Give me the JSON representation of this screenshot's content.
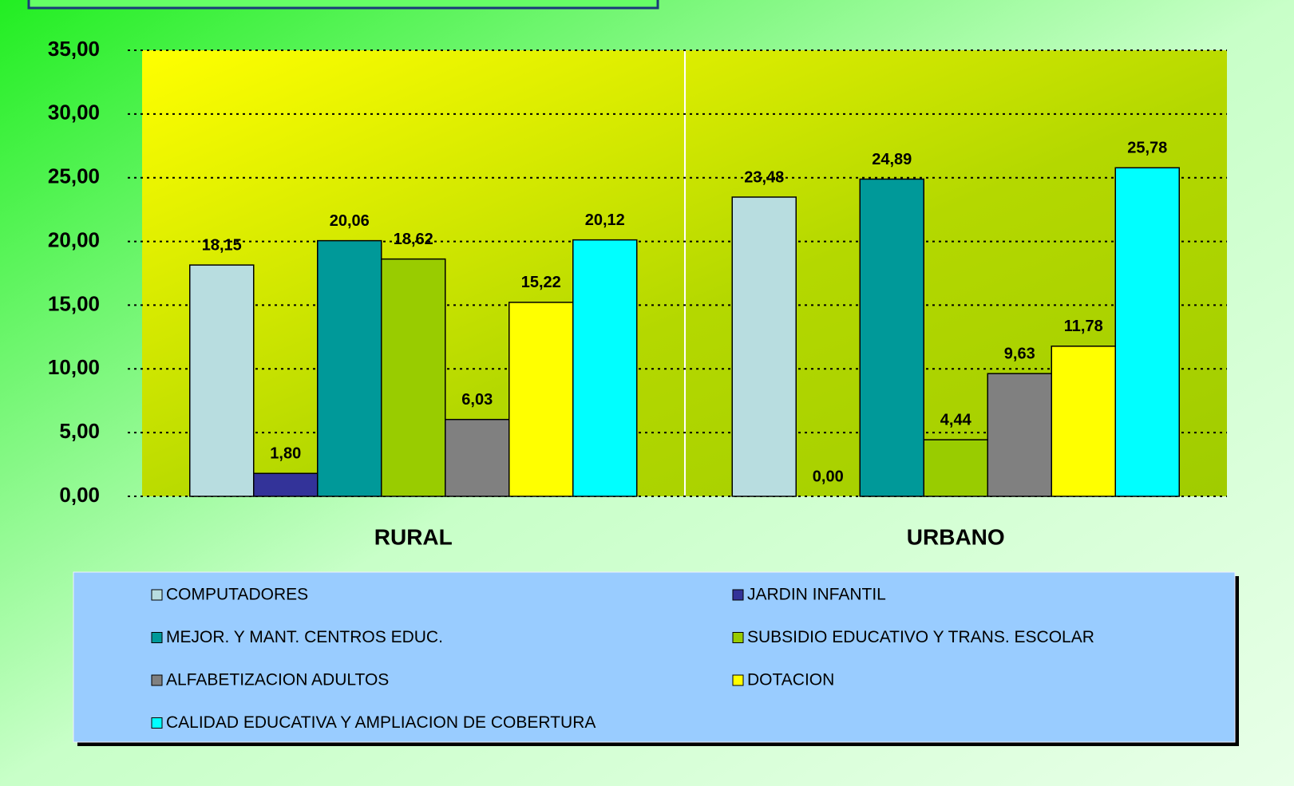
{
  "chart_data": {
    "type": "bar",
    "categories": [
      "RURAL",
      "URBANO"
    ],
    "series": [
      {
        "name": "COMPUTADORES",
        "color": "#b8dde0",
        "values": [
          18.15,
          23.48
        ],
        "value_labels": [
          "18,15",
          "23,48"
        ]
      },
      {
        "name": "JARDIN INFANTIL",
        "color": "#333399",
        "values": [
          1.8,
          0.0
        ],
        "value_labels": [
          "1,80",
          "0,00"
        ]
      },
      {
        "name": "MEJOR. Y MANT. CENTROS EDUC.",
        "color": "#009999",
        "values": [
          20.06,
          24.89
        ],
        "value_labels": [
          "20,06",
          "24,89"
        ]
      },
      {
        "name": "SUBSIDIO EDUCATIVO Y TRANS. ESCOLAR",
        "color": "#99cc00",
        "values": [
          18.62,
          4.44
        ],
        "value_labels": [
          "18,62",
          "4,44"
        ]
      },
      {
        "name": "ALFABETIZACION ADULTOS",
        "color": "#808080",
        "values": [
          6.03,
          9.63
        ],
        "value_labels": [
          "6,03",
          "9,63"
        ]
      },
      {
        "name": "DOTACION",
        "color": "#ffff00",
        "values": [
          15.22,
          11.78
        ],
        "value_labels": [
          "15,22",
          "11,78"
        ]
      },
      {
        "name": "CALIDAD EDUCATIVA Y AMPLIACION DE COBERTURA",
        "color": "#00ffff",
        "values": [
          20.12,
          25.78
        ],
        "value_labels": [
          "20,12",
          "25,78"
        ]
      }
    ],
    "ylim": [
      0,
      35
    ],
    "yticks": [
      {
        "value": 0,
        "label": "0,00"
      },
      {
        "value": 5,
        "label": "5,00"
      },
      {
        "value": 10,
        "label": "10,00"
      },
      {
        "value": 15,
        "label": "15,00"
      },
      {
        "value": 20,
        "label": "20,00"
      },
      {
        "value": 25,
        "label": "25,00"
      },
      {
        "value": 30,
        "label": "30,00"
      },
      {
        "value": 35,
        "label": "35,00"
      }
    ],
    "grid": true,
    "legend": "bottom"
  }
}
